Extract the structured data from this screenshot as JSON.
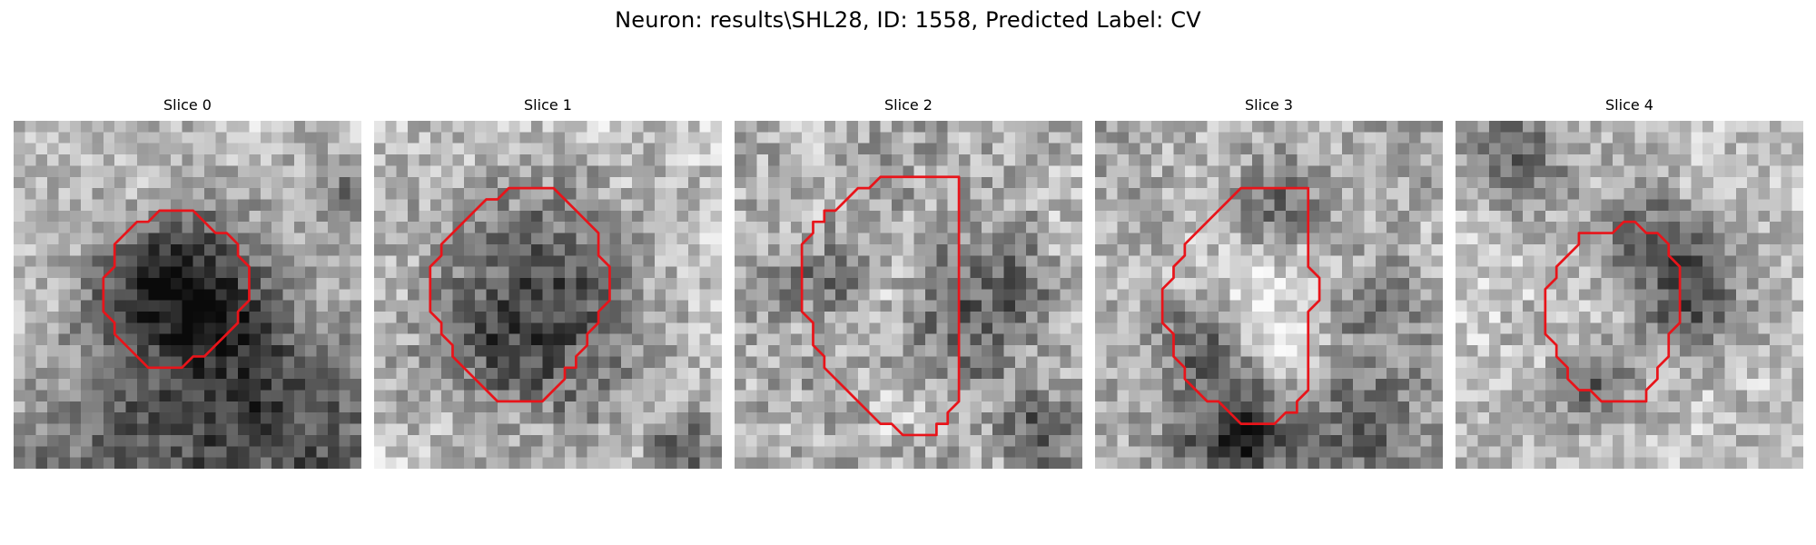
{
  "figure": {
    "title": "Neuron: results\\SHL28, ID: 1558, Predicted Label: CV"
  },
  "colors": {
    "contour": "#e8141a",
    "background": "#ffffff"
  },
  "panels": [
    {
      "label": "Slice 0",
      "seed": 11,
      "base": 0.76,
      "noise": 0.16,
      "blobs": [
        [
          15.5,
          15.5,
          5.5,
          0.55
        ],
        [
          11,
          14,
          3,
          0.2
        ],
        [
          22,
          28.5,
          9,
          0.45
        ],
        [
          6,
          30,
          6,
          0.25
        ],
        [
          29,
          6,
          2,
          0.3
        ]
      ],
      "contour": [
        [
          14,
          8
        ],
        [
          16,
          8
        ],
        [
          17,
          9
        ],
        [
          18,
          10
        ],
        [
          19,
          10
        ],
        [
          20,
          11
        ],
        [
          20,
          12
        ],
        [
          21,
          13
        ],
        [
          21,
          16
        ],
        [
          20,
          17
        ],
        [
          20,
          18
        ],
        [
          19,
          19
        ],
        [
          18,
          20
        ],
        [
          17,
          21
        ],
        [
          16,
          21
        ],
        [
          15,
          22
        ],
        [
          12,
          22
        ],
        [
          11,
          21
        ],
        [
          10,
          20
        ],
        [
          9,
          19
        ],
        [
          9,
          18
        ],
        [
          8,
          17
        ],
        [
          8,
          14
        ],
        [
          9,
          13
        ],
        [
          9,
          11
        ],
        [
          10,
          10
        ],
        [
          11,
          9
        ],
        [
          12,
          9
        ],
        [
          13,
          8
        ]
      ]
    },
    {
      "label": "Slice 1",
      "seed": 23,
      "base": 0.78,
      "noise": 0.18,
      "blobs": [
        [
          14,
          15.5,
          7.5,
          0.42
        ],
        [
          13,
          20,
          4,
          0.2
        ],
        [
          27,
          29,
          2,
          0.4
        ]
      ],
      "contour": [
        [
          13,
          6
        ],
        [
          16,
          6
        ],
        [
          17,
          7
        ],
        [
          18,
          8
        ],
        [
          19,
          9
        ],
        [
          20,
          10
        ],
        [
          20,
          12
        ],
        [
          21,
          13
        ],
        [
          21,
          16
        ],
        [
          20,
          17
        ],
        [
          20,
          18
        ],
        [
          19,
          19
        ],
        [
          19,
          20
        ],
        [
          18,
          21
        ],
        [
          18,
          22
        ],
        [
          17,
          22
        ],
        [
          17,
          23
        ],
        [
          16,
          24
        ],
        [
          15,
          25
        ],
        [
          11,
          25
        ],
        [
          10,
          24
        ],
        [
          9,
          23
        ],
        [
          8,
          22
        ],
        [
          7,
          21
        ],
        [
          7,
          20
        ],
        [
          6,
          19
        ],
        [
          6,
          18
        ],
        [
          5,
          17
        ],
        [
          5,
          13
        ],
        [
          6,
          12
        ],
        [
          6,
          11
        ],
        [
          7,
          10
        ],
        [
          8,
          9
        ],
        [
          9,
          8
        ],
        [
          10,
          7
        ],
        [
          11,
          7
        ],
        [
          12,
          6
        ]
      ]
    },
    {
      "label": "Slice 2",
      "seed": 37,
      "base": 0.7,
      "noise": 0.2,
      "blobs": [
        [
          7,
          14,
          3,
          0.3
        ],
        [
          21,
          16,
          4.5,
          0.35
        ],
        [
          27,
          27,
          2.5,
          0.35
        ],
        [
          11,
          16,
          4,
          -0.1
        ]
      ],
      "contour": [
        [
          13,
          5
        ],
        [
          20,
          5
        ],
        [
          20,
          25
        ],
        [
          19,
          26
        ],
        [
          19,
          27
        ],
        [
          18,
          27
        ],
        [
          18,
          28
        ],
        [
          15,
          28
        ],
        [
          14,
          27
        ],
        [
          13,
          27
        ],
        [
          12,
          26
        ],
        [
          11,
          25
        ],
        [
          10,
          24
        ],
        [
          9,
          23
        ],
        [
          8,
          22
        ],
        [
          8,
          21
        ],
        [
          7,
          20
        ],
        [
          7,
          18
        ],
        [
          6,
          17
        ],
        [
          6,
          11
        ],
        [
          7,
          10
        ],
        [
          7,
          9
        ],
        [
          8,
          9
        ],
        [
          8,
          8
        ],
        [
          9,
          8
        ],
        [
          10,
          7
        ],
        [
          11,
          6
        ],
        [
          12,
          6
        ]
      ]
    },
    {
      "label": "Slice 3",
      "seed": 51,
      "base": 0.66,
      "noise": 0.18,
      "blobs": [
        [
          15,
          16,
          6,
          -0.25
        ],
        [
          15.5,
          8,
          2.8,
          0.35
        ],
        [
          9,
          19,
          3,
          0.35
        ],
        [
          24,
          16,
          2.5,
          0.3
        ],
        [
          12,
          27.5,
          3.5,
          0.55
        ],
        [
          23.5,
          26,
          3.5,
          0.3
        ]
      ],
      "contour": [
        [
          13,
          6
        ],
        [
          19,
          6
        ],
        [
          19,
          13
        ],
        [
          20,
          14
        ],
        [
          20,
          16
        ],
        [
          19,
          17
        ],
        [
          19,
          24
        ],
        [
          18,
          25
        ],
        [
          18,
          26
        ],
        [
          17,
          26
        ],
        [
          16,
          27
        ],
        [
          13,
          27
        ],
        [
          12,
          26
        ],
        [
          11,
          25
        ],
        [
          10,
          25
        ],
        [
          9,
          24
        ],
        [
          8,
          23
        ],
        [
          8,
          22
        ],
        [
          7,
          21
        ],
        [
          7,
          19
        ],
        [
          6,
          18
        ],
        [
          6,
          15
        ],
        [
          7,
          14
        ],
        [
          7,
          13
        ],
        [
          8,
          12
        ],
        [
          8,
          11
        ],
        [
          9,
          10
        ],
        [
          10,
          9
        ],
        [
          11,
          8
        ],
        [
          12,
          7
        ]
      ]
    },
    {
      "label": "Slice 4",
      "seed": 67,
      "base": 0.76,
      "noise": 0.16,
      "blobs": [
        [
          20.5,
          15,
          3.5,
          0.45
        ],
        [
          17,
          10,
          3,
          0.35
        ],
        [
          12,
          23,
          2.5,
          0.35
        ],
        [
          5,
          2.5,
          3.5,
          0.35
        ],
        [
          16,
          14.5,
          4,
          -0.05
        ]
      ],
      "contour": [
        [
          15,
          9
        ],
        [
          16,
          9
        ],
        [
          17,
          10
        ],
        [
          18,
          10
        ],
        [
          19,
          11
        ],
        [
          19,
          12
        ],
        [
          20,
          13
        ],
        [
          20,
          18
        ],
        [
          19,
          19
        ],
        [
          19,
          21
        ],
        [
          18,
          22
        ],
        [
          18,
          23
        ],
        [
          17,
          24
        ],
        [
          17,
          25
        ],
        [
          13,
          25
        ],
        [
          12,
          24
        ],
        [
          11,
          24
        ],
        [
          10,
          23
        ],
        [
          10,
          22
        ],
        [
          9,
          21
        ],
        [
          9,
          20
        ],
        [
          8,
          19
        ],
        [
          8,
          15
        ],
        [
          9,
          14
        ],
        [
          9,
          13
        ],
        [
          10,
          12
        ],
        [
          11,
          11
        ],
        [
          11,
          10
        ],
        [
          12,
          10
        ],
        [
          14,
          10
        ]
      ]
    }
  ]
}
